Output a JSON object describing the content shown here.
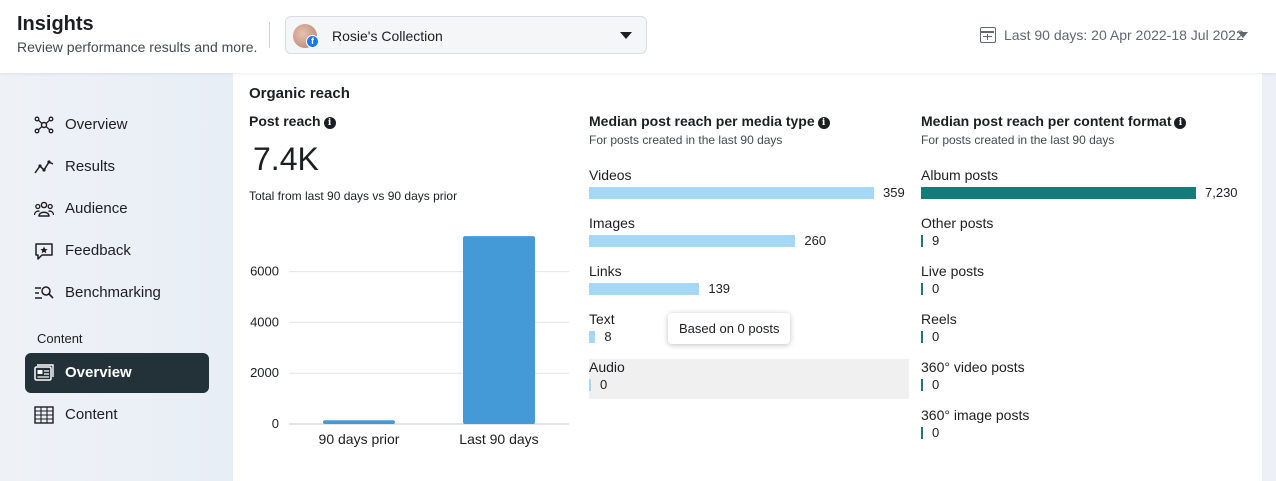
{
  "header": {
    "title": "Insights",
    "subtitle": "Review performance results and more.",
    "account_name": "Rosie's Collection",
    "date_range": "Last 90 days: 20 Apr 2022-18 Jul 2022"
  },
  "sidebar": {
    "items": [
      {
        "label": "Overview",
        "icon": "network-icon"
      },
      {
        "label": "Results",
        "icon": "trend-line-icon"
      },
      {
        "label": "Audience",
        "icon": "people-icon"
      },
      {
        "label": "Feedback",
        "icon": "star-bubble-icon"
      },
      {
        "label": "Benchmarking",
        "icon": "benchmark-search-icon"
      }
    ],
    "section_label": "Content",
    "content_items": [
      {
        "label": "Overview",
        "icon": "content-overview-icon",
        "active": true
      },
      {
        "label": "Content",
        "icon": "table-icon",
        "active": false
      }
    ]
  },
  "main": {
    "section_title": "Organic reach",
    "post_reach": {
      "title": "Post reach",
      "value": "7.4K",
      "comparison": "Total from last 90 days vs 90 days prior"
    },
    "media_type": {
      "title": "Median post reach per media type",
      "subtitle": "For posts created in the last 90 days",
      "rows": [
        {
          "label": "Videos",
          "value": 359,
          "value_text": "359"
        },
        {
          "label": "Images",
          "value": 260,
          "value_text": "260"
        },
        {
          "label": "Links",
          "value": 139,
          "value_text": "139"
        },
        {
          "label": "Text",
          "value": 8,
          "value_text": "8"
        },
        {
          "label": "Audio",
          "value": 0,
          "value_text": "0"
        }
      ],
      "tooltip": "Based on 0 posts"
    },
    "content_format": {
      "title": "Median post reach per content format",
      "subtitle": "For posts created in the last 90 days",
      "rows": [
        {
          "label": "Album posts",
          "value": 7230,
          "value_text": "7,230"
        },
        {
          "label": "Other posts",
          "value": 9,
          "value_text": "9"
        },
        {
          "label": "Live posts",
          "value": 0,
          "value_text": "0"
        },
        {
          "label": "Reels",
          "value": 0,
          "value_text": "0"
        },
        {
          "label": "360° video posts",
          "value": 0,
          "value_text": "0"
        },
        {
          "label": "360° image posts",
          "value": 0,
          "value_text": "0"
        }
      ]
    }
  },
  "colors": {
    "media_bar": "#a6d8f5",
    "format_bar": "#137c7a",
    "chart_bar": "#439ad6",
    "active_nav_bg": "#233239"
  },
  "chart_data": {
    "type": "bar",
    "categories": [
      "90 days prior",
      "Last 90 days"
    ],
    "values": [
      150,
      7400
    ],
    "yticks": [
      "0",
      "2000",
      "4000",
      "6000"
    ],
    "ylim": [
      0,
      7600
    ],
    "grid": true
  }
}
